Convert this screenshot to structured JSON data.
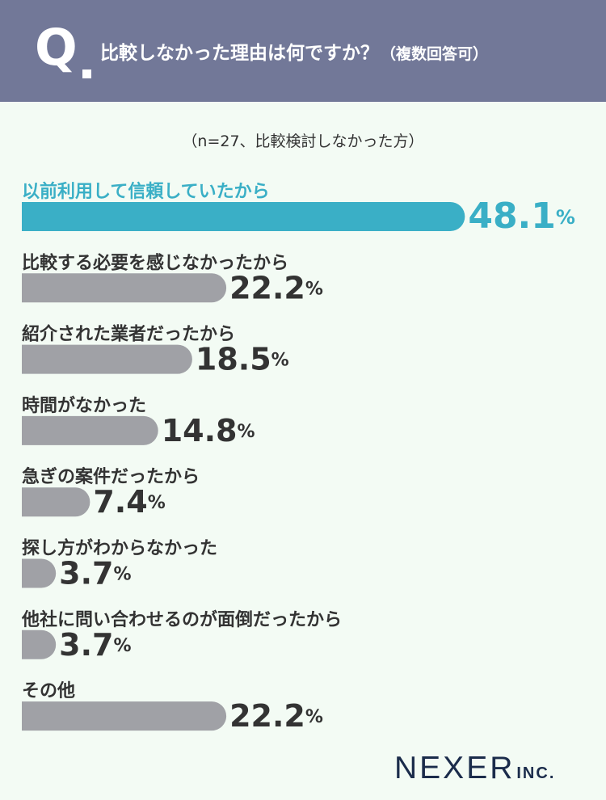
{
  "header": {
    "q_mark": "Q",
    "question": "比較しなかった理由は何ですか？",
    "question_note": "（複数回答可）"
  },
  "sample_note": "（n=27、比較検討しなかった方）",
  "colors": {
    "header_bg": "#727898",
    "highlight": "#3aafc6",
    "bar_default": "#a0a1a6",
    "label_default": "#333333",
    "background": "#f3fbf4"
  },
  "chart_data": {
    "type": "bar",
    "orientation": "horizontal",
    "unit": "%",
    "categories": [
      "以前利用して信頼していたから",
      "比較する必要を感じなかったから",
      "紹介された業者だったから",
      "時間がなかった",
      "急ぎの案件だったから",
      "探し方がわからなかった",
      "他社に問い合わせるのが面倒だったから",
      "その他"
    ],
    "values": [
      48.1,
      22.2,
      18.5,
      14.8,
      7.4,
      3.7,
      3.7,
      22.2
    ],
    "value_labels": [
      "48.1",
      "22.2",
      "18.5",
      "14.8",
      "7.4",
      "3.7",
      "3.7",
      "22.2"
    ],
    "highlight_index": 0,
    "grid": false,
    "legend": "none"
  },
  "brand": {
    "name": "NEXER",
    "suffix": "INC."
  }
}
